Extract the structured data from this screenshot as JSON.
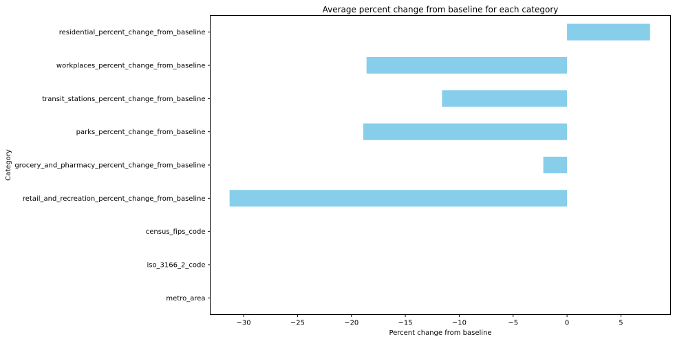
{
  "chart_data": {
    "type": "bar",
    "orientation": "horizontal",
    "title": "Average percent change from baseline for each category",
    "xlabel": "Percent change from baseline",
    "ylabel": "Category",
    "categories": [
      "residential_percent_change_from_baseline",
      "workplaces_percent_change_from_baseline",
      "transit_stations_percent_change_from_baseline",
      "parks_percent_change_from_baseline",
      "grocery_and_pharmacy_percent_change_from_baseline",
      "retail_and_recreation_percent_change_from_baseline",
      "census_fips_code",
      "iso_3166_2_code",
      "metro_area"
    ],
    "values": [
      7.7,
      -18.6,
      -11.6,
      -18.9,
      -2.2,
      -31.3,
      null,
      null,
      null
    ],
    "xlim": [
      -33.1,
      9.6
    ],
    "xticks": [
      -30,
      -25,
      -20,
      -15,
      -10,
      -5,
      0,
      5
    ],
    "xtick_labels": [
      "−30",
      "−25",
      "−20",
      "−15",
      "−10",
      "−5",
      "0",
      "5"
    ],
    "bar_color": "#87ceeb",
    "grid": false,
    "legend": "none"
  }
}
